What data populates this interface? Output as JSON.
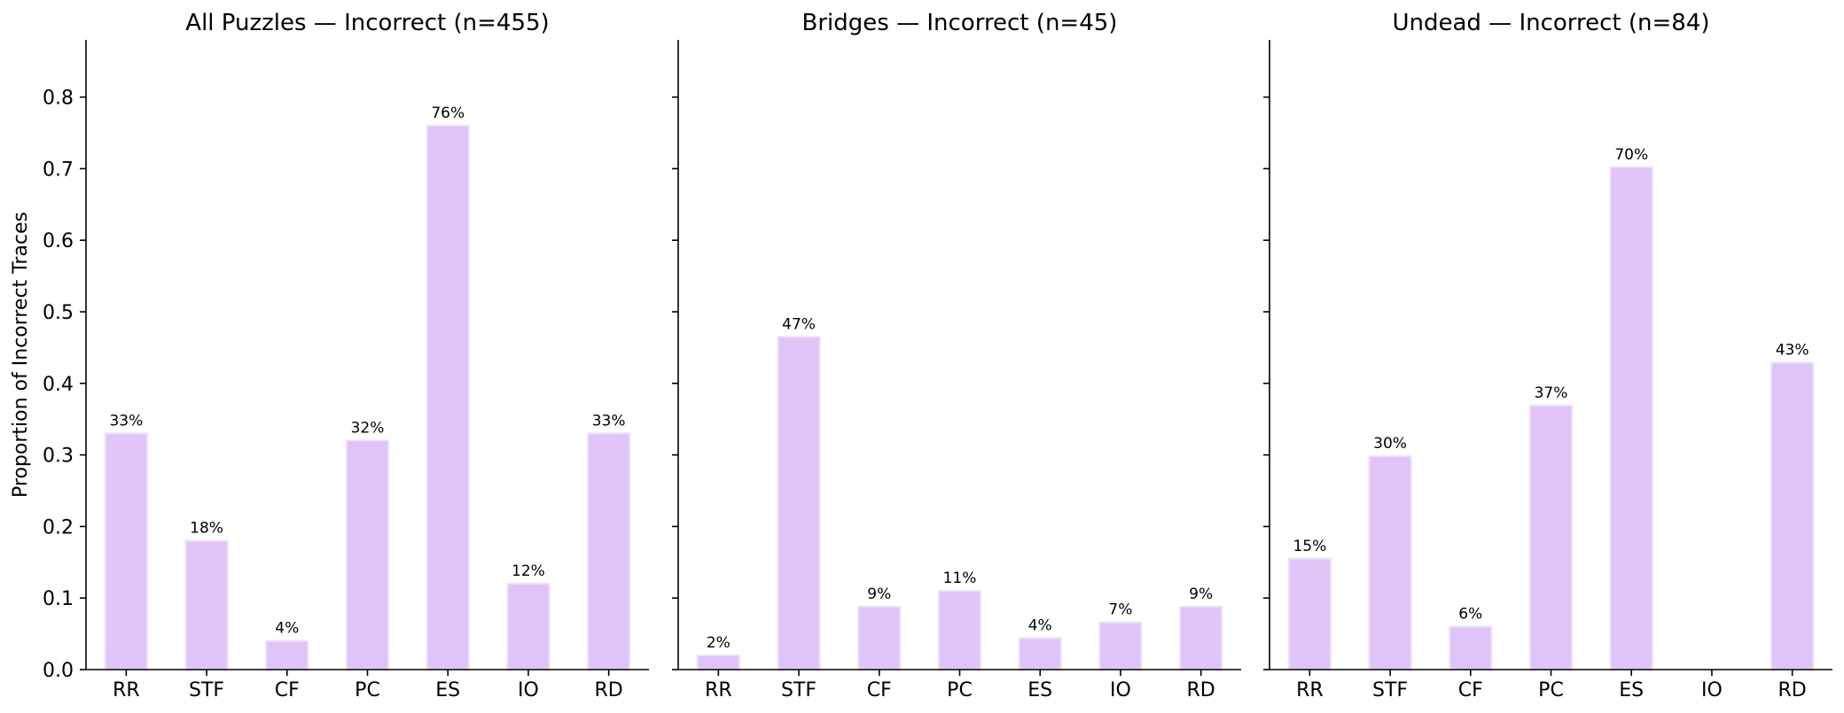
{
  "chart_data": [
    {
      "type": "bar",
      "title": "All Puzzles — Incorrect (n=455)",
      "ylabel": "Proportion of Incorrect Traces",
      "xlabel": "",
      "categories": [
        "RR",
        "STF",
        "CF",
        "PC",
        "ES",
        "IO",
        "RD"
      ],
      "values": [
        0.33,
        0.18,
        0.04,
        0.32,
        0.76,
        0.12,
        0.33
      ],
      "data_labels": [
        "33%",
        "18%",
        "4%",
        "32%",
        "76%",
        "12%",
        "33%"
      ],
      "ylim": [
        0,
        0.88
      ],
      "yticks": [
        "0.0",
        "0.1",
        "0.2",
        "0.3",
        "0.4",
        "0.5",
        "0.6",
        "0.7",
        "0.8"
      ],
      "color": "#e0c4f8"
    },
    {
      "type": "bar",
      "title": "Bridges — Incorrect (n=45)",
      "ylabel": "",
      "xlabel": "",
      "categories": [
        "RR",
        "STF",
        "CF",
        "PC",
        "ES",
        "IO",
        "RD"
      ],
      "values": [
        0.02,
        0.465,
        0.088,
        0.11,
        0.044,
        0.066,
        0.088
      ],
      "data_labels": [
        "2%",
        "47%",
        "9%",
        "11%",
        "4%",
        "7%",
        "9%"
      ],
      "ylim": [
        0,
        0.88
      ],
      "color": "#e0c4f8"
    },
    {
      "type": "bar",
      "title": "Undead — Incorrect (n=84)",
      "ylabel": "",
      "xlabel": "",
      "categories": [
        "RR",
        "STF",
        "CF",
        "PC",
        "ES",
        "IO",
        "RD"
      ],
      "values": [
        0.155,
        0.298,
        0.06,
        0.369,
        0.702,
        0,
        0.429
      ],
      "data_labels": [
        "15%",
        "30%",
        "6%",
        "37%",
        "70%",
        "",
        "43%"
      ],
      "ylim": [
        0,
        0.88
      ],
      "color": "#e0c4f8"
    }
  ]
}
